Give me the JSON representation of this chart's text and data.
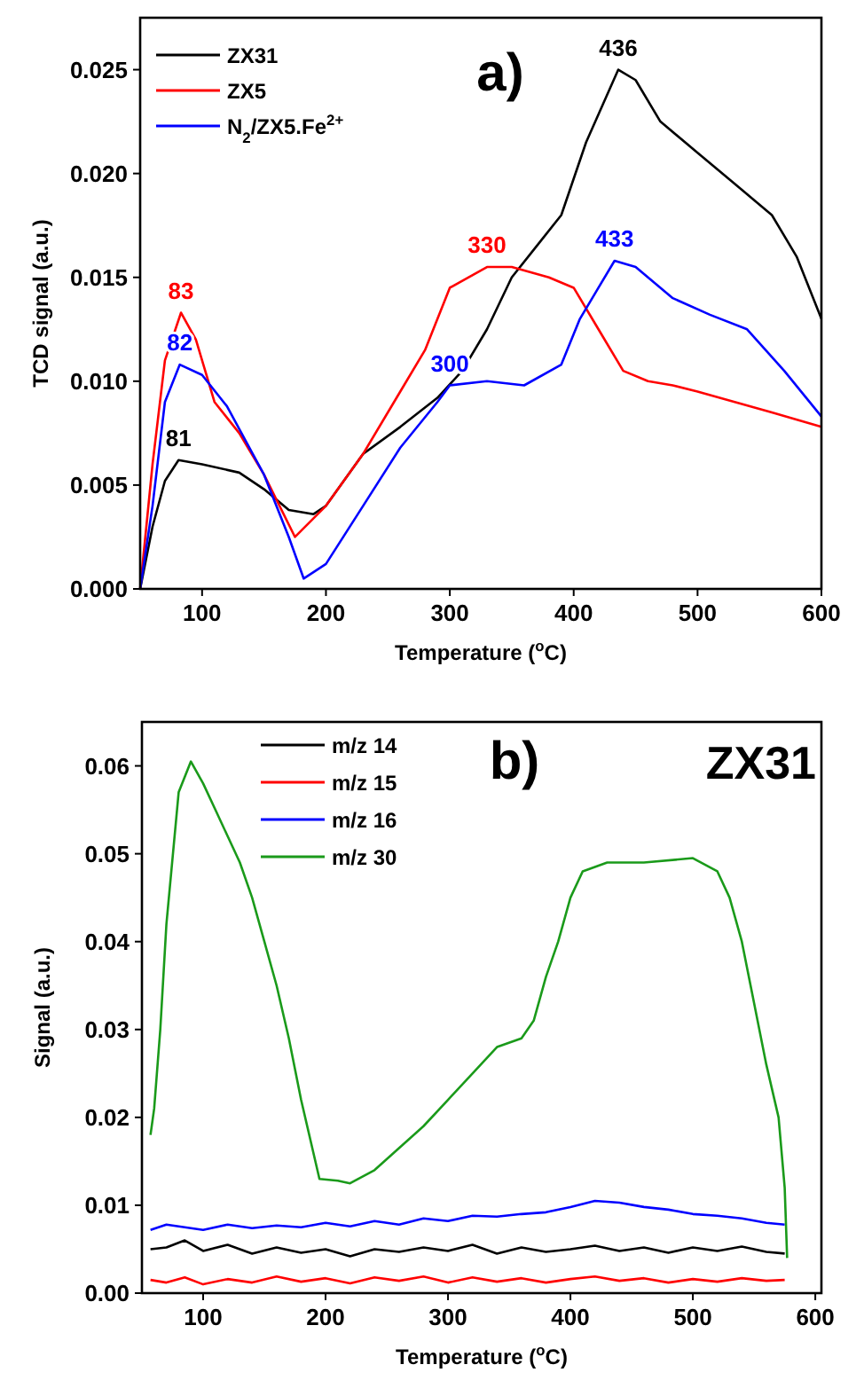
{
  "chart_data": [
    {
      "type": "line",
      "xlabel": "Temperature ($^{o}$C)",
      "ylabel": "TCD signal (a.u.)",
      "xlim": [
        50,
        600
      ],
      "xticks": [
        100,
        200,
        300,
        400,
        500,
        600
      ],
      "ylim": [
        0,
        0.0275
      ],
      "yticks": [
        {
          "value": 0,
          "label": "0.000"
        },
        {
          "value": 0.005,
          "label": "0.005"
        },
        {
          "value": 0.01,
          "label": "0.010"
        },
        {
          "value": 0.015,
          "label": "0.015"
        },
        {
          "value": 0.02,
          "label": "0.020"
        },
        {
          "value": 0.025,
          "label": "0.025"
        }
      ],
      "legend": "top left",
      "grid": false,
      "marker": "none",
      "line_style": "solid",
      "annotations": [
        "a)",
        {
          "text": "436",
          "x": 436,
          "y": 0.025
        },
        {
          "text": "330",
          "x": 330,
          "y": 0.0155
        },
        {
          "text": "433",
          "x": 433,
          "y": 0.0158
        },
        {
          "text": "83",
          "x": 83,
          "y": 0.0133
        },
        {
          "text": "82",
          "x": 82,
          "y": 0.0108
        },
        {
          "text": "81",
          "x": 81,
          "y": 0.0062
        },
        {
          "text": "300",
          "x": 300,
          "y": 0.0098
        }
      ],
      "series": [
        {
          "name": "ZX31",
          "color": "#000000",
          "x": [
            50,
            60,
            70,
            81,
            100,
            130,
            150,
            170,
            190,
            200,
            230,
            260,
            290,
            310,
            330,
            350,
            370,
            390,
            410,
            436,
            450,
            470,
            500,
            530,
            560,
            580,
            600
          ],
          "values": [
            0,
            0.003,
            0.0052,
            0.0062,
            0.006,
            0.0056,
            0.0048,
            0.0038,
            0.0036,
            0.004,
            0.0065,
            0.0078,
            0.0092,
            0.0105,
            0.0125,
            0.015,
            0.0165,
            0.018,
            0.0215,
            0.025,
            0.0245,
            0.0225,
            0.021,
            0.0195,
            0.018,
            0.016,
            0.013
          ]
        },
        {
          "name": "ZX5",
          "color": "#ff0000",
          "x": [
            50,
            60,
            70,
            83,
            95,
            110,
            130,
            150,
            175,
            200,
            230,
            260,
            280,
            300,
            330,
            350,
            380,
            400,
            420,
            440,
            460,
            480,
            500,
            530,
            560,
            600
          ],
          "values": [
            0,
            0.006,
            0.011,
            0.0133,
            0.012,
            0.009,
            0.0075,
            0.0055,
            0.0025,
            0.004,
            0.0065,
            0.0095,
            0.0115,
            0.0145,
            0.0155,
            0.0155,
            0.015,
            0.0145,
            0.0125,
            0.0105,
            0.01,
            0.0098,
            0.0095,
            0.009,
            0.0085,
            0.0078
          ]
        },
        {
          "name": "N$_{2}$/ZX5.Fe$^{2+}$",
          "color": "#0000ff",
          "x": [
            50,
            60,
            70,
            82,
            100,
            120,
            150,
            170,
            182,
            200,
            230,
            260,
            290,
            300,
            330,
            360,
            390,
            405,
            420,
            433,
            450,
            480,
            510,
            540,
            570,
            600
          ],
          "values": [
            0,
            0.004,
            0.009,
            0.0108,
            0.0103,
            0.0088,
            0.0055,
            0.0025,
            0.0005,
            0.0012,
            0.004,
            0.0068,
            0.009,
            0.0098,
            0.01,
            0.0098,
            0.0108,
            0.013,
            0.0145,
            0.0158,
            0.0155,
            0.014,
            0.0132,
            0.0125,
            0.0105,
            0.0083
          ]
        }
      ]
    },
    {
      "type": "line",
      "xlabel": "Temperature ($^{o}$C)",
      "ylabel": "Signal (a.u.)",
      "xlim": [
        50,
        605
      ],
      "xticks": [
        100,
        200,
        300,
        400,
        500,
        600
      ],
      "ylim": [
        0,
        0.065
      ],
      "yticks": [
        {
          "value": 0,
          "label": "0.00"
        },
        {
          "value": 0.01,
          "label": "0.01"
        },
        {
          "value": 0.02,
          "label": "0.02"
        },
        {
          "value": 0.03,
          "label": "0.03"
        },
        {
          "value": 0.04,
          "label": "0.04"
        },
        {
          "value": 0.05,
          "label": "0.05"
        },
        {
          "value": 0.06,
          "label": "0.06"
        }
      ],
      "legend": "top left",
      "grid": false,
      "marker": "none",
      "line_style": "solid",
      "annotations": [
        "b)",
        "ZX31"
      ],
      "series": [
        {
          "name": "m/z 14",
          "color": "#000000",
          "x": [
            57,
            70,
            85,
            100,
            120,
            140,
            160,
            180,
            200,
            220,
            240,
            260,
            280,
            300,
            320,
            340,
            360,
            380,
            400,
            420,
            440,
            460,
            480,
            500,
            520,
            540,
            560,
            575
          ],
          "values": [
            0.005,
            0.0052,
            0.006,
            0.0048,
            0.0055,
            0.0045,
            0.0052,
            0.0046,
            0.005,
            0.0042,
            0.005,
            0.0047,
            0.0052,
            0.0048,
            0.0055,
            0.0045,
            0.0052,
            0.0047,
            0.005,
            0.0054,
            0.0048,
            0.0052,
            0.0046,
            0.0052,
            0.0048,
            0.0053,
            0.0047,
            0.0045
          ]
        },
        {
          "name": "m/z 15",
          "color": "#ff0000",
          "x": [
            57,
            70,
            85,
            100,
            120,
            140,
            160,
            180,
            200,
            220,
            240,
            260,
            280,
            300,
            320,
            340,
            360,
            380,
            400,
            420,
            440,
            460,
            480,
            500,
            520,
            540,
            560,
            575
          ],
          "values": [
            0.0015,
            0.0012,
            0.0018,
            0.001,
            0.0016,
            0.0012,
            0.0019,
            0.0013,
            0.0017,
            0.0011,
            0.0018,
            0.0014,
            0.0019,
            0.0012,
            0.0018,
            0.0013,
            0.0017,
            0.0012,
            0.0016,
            0.0019,
            0.0014,
            0.0017,
            0.0012,
            0.0016,
            0.0013,
            0.0017,
            0.0014,
            0.0015
          ]
        },
        {
          "name": "m/z 16",
          "color": "#0000ff",
          "x": [
            57,
            70,
            85,
            100,
            120,
            140,
            160,
            180,
            200,
            220,
            240,
            260,
            280,
            300,
            320,
            340,
            360,
            380,
            400,
            420,
            440,
            460,
            480,
            500,
            520,
            540,
            560,
            575
          ],
          "values": [
            0.0072,
            0.0078,
            0.0075,
            0.0072,
            0.0078,
            0.0074,
            0.0077,
            0.0075,
            0.008,
            0.0076,
            0.0082,
            0.0078,
            0.0085,
            0.0082,
            0.0088,
            0.0087,
            0.009,
            0.0092,
            0.0098,
            0.0105,
            0.0103,
            0.0098,
            0.0095,
            0.009,
            0.0088,
            0.0085,
            0.008,
            0.0078
          ]
        },
        {
          "name": "m/z 30",
          "color": "#1a9a1a",
          "x": [
            57,
            60,
            65,
            70,
            80,
            90,
            100,
            110,
            120,
            130,
            140,
            150,
            160,
            170,
            180,
            190,
            195,
            210,
            220,
            240,
            260,
            280,
            300,
            320,
            340,
            360,
            370,
            380,
            390,
            400,
            410,
            430,
            460,
            500,
            520,
            530,
            540,
            550,
            560,
            570,
            575,
            577
          ],
          "values": [
            0.018,
            0.021,
            0.03,
            0.042,
            0.057,
            0.0605,
            0.058,
            0.055,
            0.052,
            0.049,
            0.045,
            0.04,
            0.035,
            0.029,
            0.022,
            0.016,
            0.013,
            0.0128,
            0.0125,
            0.014,
            0.0165,
            0.019,
            0.022,
            0.025,
            0.028,
            0.029,
            0.031,
            0.036,
            0.04,
            0.045,
            0.048,
            0.049,
            0.049,
            0.0495,
            0.048,
            0.045,
            0.04,
            0.033,
            0.026,
            0.02,
            0.012,
            0.004
          ]
        }
      ]
    }
  ]
}
